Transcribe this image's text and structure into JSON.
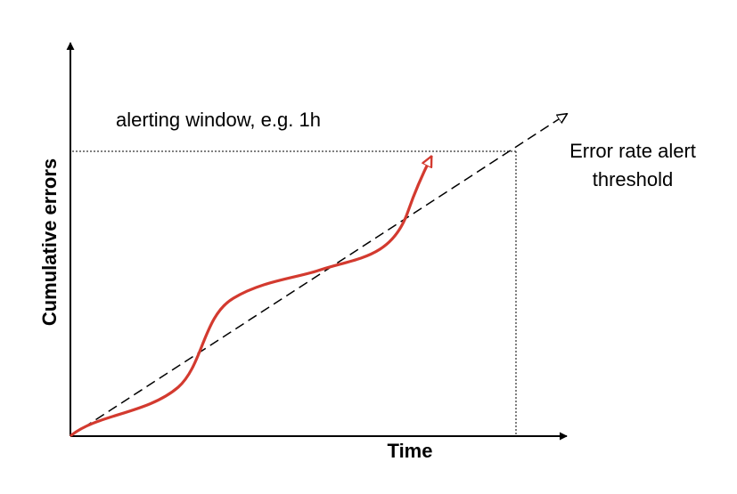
{
  "labels": {
    "alerting_window": "alerting window, e.g. 1h",
    "threshold": "Error rate alert threshold",
    "x_axis": "Time",
    "y_axis": "Cumulative errors"
  },
  "colors": {
    "error_curve": "#d33a2f",
    "threshold_line": "#000000",
    "axes": "#000000",
    "guides": "#000000"
  }
}
